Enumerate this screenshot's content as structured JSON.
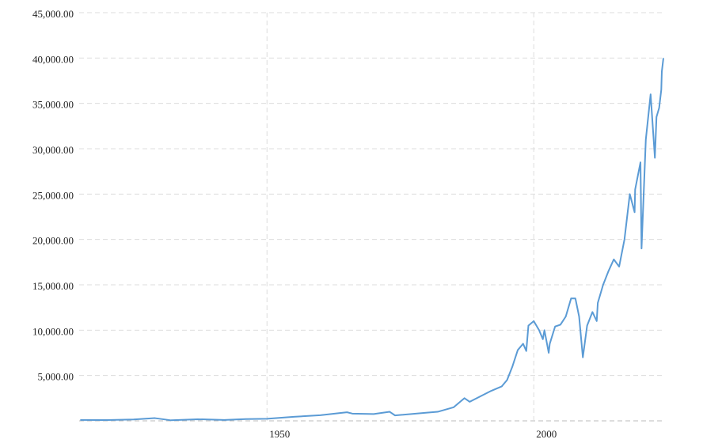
{
  "chart_data": {
    "type": "line",
    "x": [
      1915,
      1920,
      1925,
      1929,
      1932,
      1937,
      1942,
      1946,
      1950,
      1955,
      1960,
      1965,
      1966,
      1970,
      1973,
      1974,
      1980,
      1982,
      1985,
      1987,
      1988,
      1990,
      1992,
      1994,
      1995,
      1996,
      1997,
      1998,
      1998.6,
      1999,
      2000,
      2000.5,
      2001,
      2001.7,
      2002,
      2002.8,
      2003,
      2004,
      2005,
      2006,
      2007,
      2007.8,
      2008.5,
      2009.2,
      2010,
      2011,
      2011.8,
      2012,
      2013,
      2014,
      2015,
      2016,
      2017,
      2018,
      2018.9,
      2019,
      2020,
      2020.2,
      2020.8,
      2021,
      2021.9,
      2022.7,
      2023,
      2023.5,
      2023.9,
      2024,
      2024.3
    ],
    "series": [
      {
        "color": "#5b9bd5",
        "values": [
          100,
          90,
          150,
          300,
          60,
          180,
          100,
          200,
          230,
          450,
          620,
          950,
          800,
          750,
          1000,
          600,
          900,
          1000,
          1500,
          2500,
          2100,
          2700,
          3300,
          3800,
          4500,
          6000,
          7800,
          8500,
          7700,
          10500,
          11000,
          10500,
          10000,
          9000,
          10000,
          7500,
          8500,
          10400,
          10600,
          11500,
          13500,
          13500,
          11500,
          7000,
          10500,
          12000,
          11000,
          13000,
          15000,
          16500,
          17800,
          17000,
          20000,
          25000,
          23000,
          25500,
          28500,
          19000,
          28000,
          31000,
          36000,
          29000,
          33500,
          34500,
          36500,
          38500,
          40000
        ]
      }
    ],
    "xlim": [
      1914.8,
      2024.3
    ],
    "xticks": [
      1950,
      2000
    ],
    "ylim": [
      0,
      45000
    ],
    "yticks": [
      {
        "value": 5000,
        "label": "5,000.00"
      },
      {
        "value": 10000,
        "label": "10,000.00"
      },
      {
        "value": 15000,
        "label": "15,000.00"
      },
      {
        "value": 20000,
        "label": "20,000.00"
      },
      {
        "value": 25000,
        "label": "25,000.00"
      },
      {
        "value": 30000,
        "label": "30,000.00"
      },
      {
        "value": 35000,
        "label": "35,000.00"
      },
      {
        "value": 40000,
        "label": "40,000.00"
      },
      {
        "value": 45000,
        "label": "45,000.00"
      }
    ],
    "grid": true
  }
}
